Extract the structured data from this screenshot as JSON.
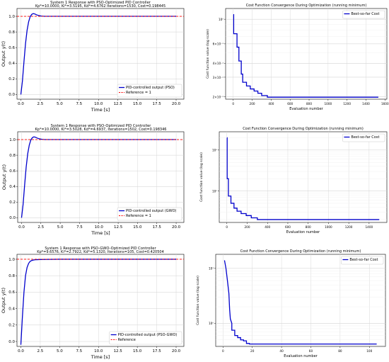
{
  "chart_data": [
    {
      "type": "line",
      "title": "System 1 Response with PSO-Optimized PID Controller",
      "subtitle": "Kp*=10.0000, Ki*=3.5195, Kd*=4.6762  Iterations=1530, Cost=0.198445",
      "xlabel": "Time [s]",
      "ylabel": "Output y(t)",
      "xlim": [
        -0.5,
        21
      ],
      "ylim": [
        -0.06,
        1.1
      ],
      "xticks": [
        "0.0",
        "2.5",
        "5.0",
        "7.5",
        "10.0",
        "12.5",
        "15.0",
        "17.5",
        "20.0"
      ],
      "yticks": [
        "0.0",
        "0.2",
        "0.4",
        "0.6",
        "0.8",
        "1.0"
      ],
      "grid": true,
      "legend_position": "bottom-right",
      "series": [
        {
          "name": "PID-controlled output (PSO)",
          "color": "#0000cc",
          "style": "solid",
          "x": [
            0,
            0.2,
            0.4,
            0.6,
            0.8,
            1.0,
            1.2,
            1.4,
            1.6,
            1.8,
            2.0,
            2.3,
            2.6,
            3.0,
            3.5,
            4,
            5,
            20
          ],
          "y": [
            0,
            0.17,
            0.42,
            0.65,
            0.82,
            0.93,
            0.995,
            1.025,
            1.035,
            1.03,
            1.02,
            1.01,
            1.004,
            1.0,
            1.0,
            1.0,
            1.0,
            1.0
          ]
        },
        {
          "name": "Reference = 1",
          "color": "#ff0000",
          "style": "dashed",
          "x": [
            -0.5,
            21
          ],
          "y": [
            1,
            1
          ]
        }
      ]
    },
    {
      "type": "line",
      "title": "Cost Function Convergence During Optimization (running minimum)",
      "xlabel": "Evaluation number",
      "ylabel": "Cost function value (log scale)",
      "yscale": "log",
      "xlim": [
        -80,
        1620
      ],
      "ylim": [
        0.19,
        1.25
      ],
      "xticks": [
        "0",
        "200",
        "400",
        "600",
        "800",
        "1000",
        "1200",
        "1400",
        "1600"
      ],
      "yticks": [
        "10⁰",
        "6×10⁻¹",
        "4×10⁻¹",
        "3×10⁻¹",
        "2×10⁻¹"
      ],
      "grid": true,
      "legend_position": "top-right",
      "series": [
        {
          "name": "Best-so-far Cost",
          "color": "#0000cc",
          "x": [
            1,
            5,
            5,
            40,
            40,
            60,
            60,
            85,
            85,
            100,
            100,
            140,
            140,
            180,
            180,
            220,
            220,
            260,
            260,
            300,
            300,
            360,
            360,
            1530
          ],
          "y": [
            1.1,
            1.1,
            0.74,
            0.74,
            0.56,
            0.56,
            0.42,
            0.42,
            0.32,
            0.32,
            0.27,
            0.27,
            0.25,
            0.25,
            0.235,
            0.235,
            0.225,
            0.225,
            0.215,
            0.215,
            0.205,
            0.205,
            0.198,
            0.198
          ]
        }
      ]
    },
    {
      "type": "line",
      "title": "System 1 Response with PSO-Optimized PID Controller",
      "subtitle": "Kp*=10.0000, Ki*=3.5028, Kd*=4.6937, Iterations=1502, Cost=0.198346",
      "xlabel": "Time [s]",
      "ylabel": "Output y(t)",
      "xlim": [
        -0.5,
        21
      ],
      "ylim": [
        -0.06,
        1.1
      ],
      "xticks": [
        "0.0",
        "2.5",
        "5.0",
        "7.5",
        "10.0",
        "12.5",
        "15.0",
        "17.5",
        "20.0"
      ],
      "yticks": [
        "0.0",
        "0.2",
        "0.4",
        "0.6",
        "0.8",
        "1.0"
      ],
      "grid": true,
      "legend_position": "bottom-right",
      "series": [
        {
          "name": "PID-controlled output (GWO)",
          "color": "#0000cc",
          "style": "solid",
          "x": [
            0,
            0.2,
            0.4,
            0.6,
            0.8,
            1.0,
            1.2,
            1.4,
            1.6,
            1.8,
            2.0,
            2.3,
            2.6,
            3.0,
            3.5,
            4,
            5,
            20
          ],
          "y": [
            0,
            0.17,
            0.42,
            0.65,
            0.82,
            0.93,
            0.995,
            1.025,
            1.035,
            1.03,
            1.02,
            1.01,
            1.004,
            1.0,
            1.0,
            1.0,
            1.0,
            1.0
          ]
        },
        {
          "name": "Reference = 1",
          "color": "#ff0000",
          "style": "dashed",
          "x": [
            -0.5,
            21
          ],
          "y": [
            1,
            1
          ]
        }
      ]
    },
    {
      "type": "line",
      "title": "Cost Function Convergence During Optimization (running minimum)",
      "xlabel": "Evaluation number",
      "ylabel": "Cost function value (log scale)",
      "yscale": "log",
      "xlim": [
        -75,
        1575
      ],
      "ylim": [
        0.17,
        28
      ],
      "xticks": [
        "0",
        "200",
        "400",
        "600",
        "800",
        "1000",
        "1200",
        "1400"
      ],
      "yticks": [
        "10¹",
        "10⁰"
      ],
      "grid": true,
      "legend_position": "top-right",
      "series": [
        {
          "name": "Best-so-far Cost",
          "color": "#0000cc",
          "x": [
            1,
            3,
            3,
            15,
            15,
            40,
            40,
            70,
            70,
            100,
            100,
            140,
            140,
            190,
            190,
            240,
            240,
            300,
            300,
            1500
          ],
          "y": [
            20,
            20,
            2.0,
            2.0,
            0.75,
            0.75,
            0.5,
            0.5,
            0.38,
            0.38,
            0.32,
            0.32,
            0.28,
            0.28,
            0.25,
            0.25,
            0.22,
            0.22,
            0.2,
            0.2
          ]
        }
      ]
    },
    {
      "type": "line",
      "title": "System 1 Response with PSO-GWO-Optimized PID Controller",
      "subtitle": "Kp*=9.6576, Ki*=2.7922, Kd*=5.1320, Iterations=105, Cost=0.420504",
      "xlabel": "Time [s]",
      "ylabel": "Output y(t)",
      "xlim": [
        -0.5,
        21
      ],
      "ylim": [
        -0.06,
        1.06
      ],
      "xticks": [
        "0.0",
        "2.5",
        "5.0",
        "7.5",
        "10.0",
        "12.5",
        "15.0",
        "17.5",
        "20.0"
      ],
      "yticks": [
        "0.0",
        "0.2",
        "0.4",
        "0.6",
        "0.8",
        "1.0"
      ],
      "grid": true,
      "legend_position": "bottom-right",
      "series": [
        {
          "name": "PID-controlled output (PSO-GWO)",
          "color": "#0000cc",
          "style": "solid",
          "x": [
            0,
            0.2,
            0.4,
            0.6,
            0.8,
            1.0,
            1.2,
            1.4,
            1.6,
            1.8,
            2.0,
            2.5,
            3,
            4,
            5,
            20
          ],
          "y": [
            -0.04,
            0.3,
            0.6,
            0.8,
            0.9,
            0.95,
            0.975,
            0.985,
            0.99,
            0.993,
            0.995,
            0.997,
            0.998,
            0.999,
            1.0,
            1.0
          ]
        },
        {
          "name": "Reference",
          "color": "#ff0000",
          "style": "dashed",
          "x": [
            -0.5,
            21
          ],
          "y": [
            1,
            1
          ]
        }
      ]
    },
    {
      "type": "line",
      "title": "Cost Function Convergence During Optimization (running minimum)",
      "xlabel": "Evaluation number",
      "ylabel": "Cost function value (log scale)",
      "yscale": "log",
      "xlim": [
        -5,
        111
      ],
      "ylim": [
        0.38,
        18
      ],
      "xticks": [
        "0",
        "20",
        "40",
        "60",
        "80",
        "100"
      ],
      "yticks": [
        "10¹",
        "10⁰"
      ],
      "grid": true,
      "legend_position": "top-right",
      "series": [
        {
          "name": "Best-so-far Cost",
          "color": "#0000cc",
          "x": [
            1,
            2,
            3,
            4,
            4.5,
            5,
            6,
            6,
            8,
            8,
            10,
            10,
            12,
            12,
            14,
            14,
            16,
            16,
            18,
            18,
            105
          ],
          "y": [
            14,
            10,
            6,
            3.5,
            1.8,
            1.2,
            1.0,
            0.75,
            0.75,
            0.6,
            0.6,
            0.55,
            0.55,
            0.5,
            0.5,
            0.48,
            0.48,
            0.43,
            0.43,
            0.42,
            0.42
          ]
        }
      ]
    }
  ]
}
